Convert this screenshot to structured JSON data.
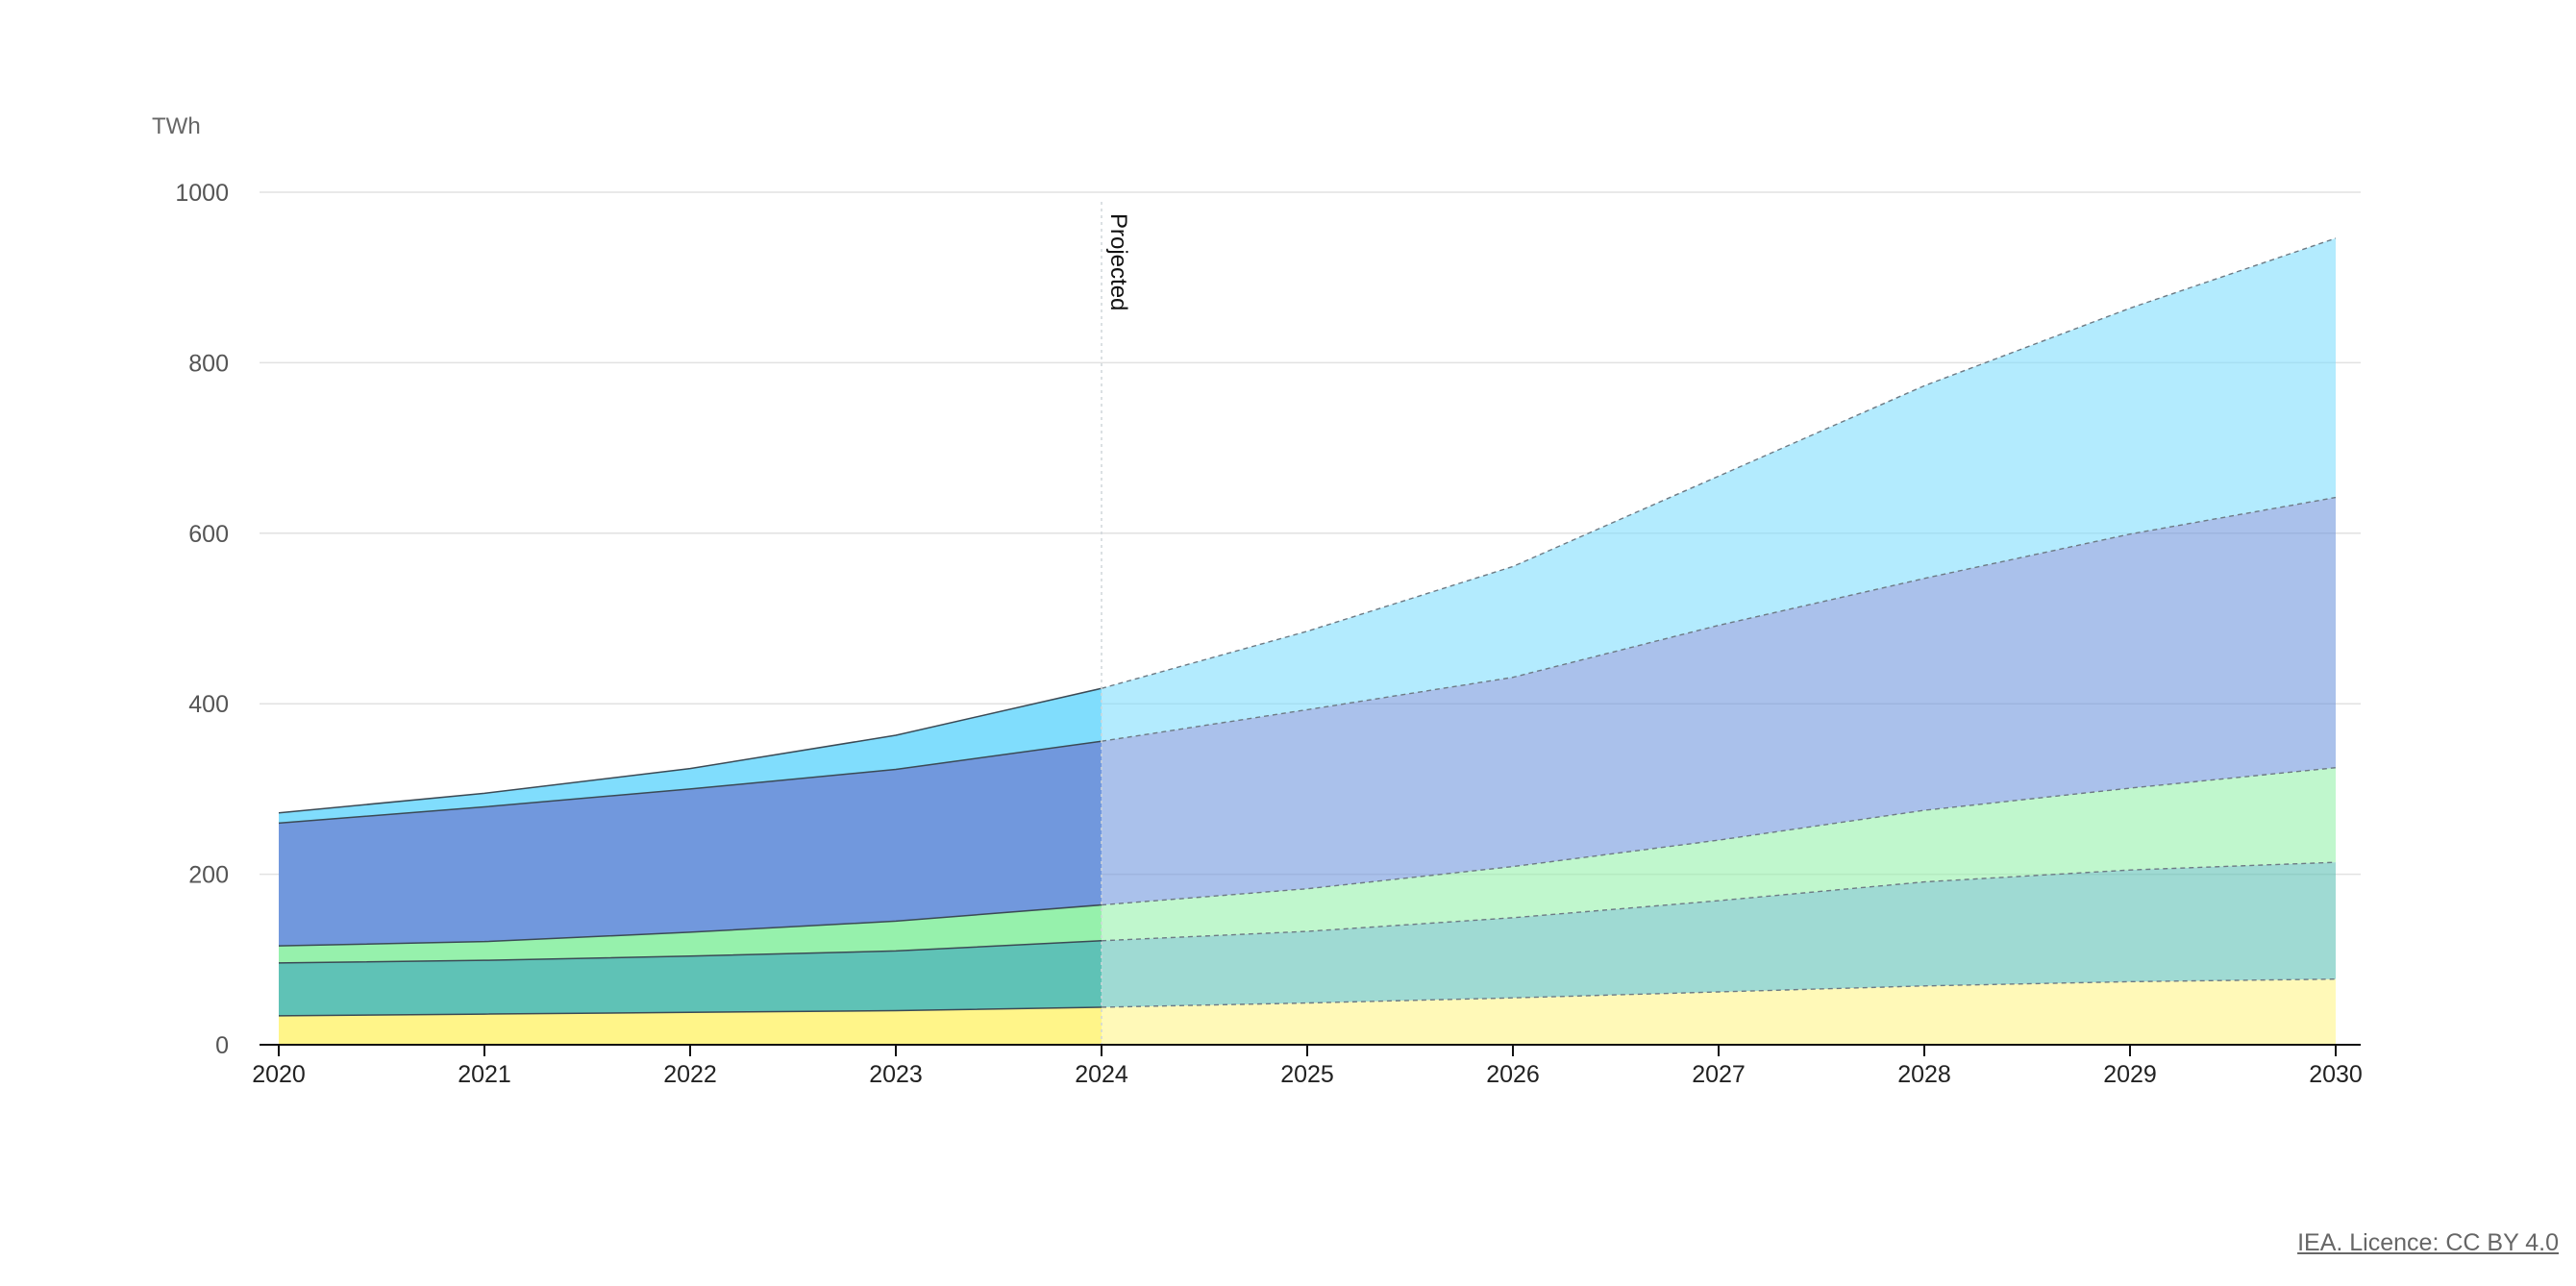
{
  "chart_data": {
    "type": "area",
    "stacked": true,
    "ylabel": "TWh",
    "ylim": [
      0,
      1000
    ],
    "yticks": [
      0,
      200,
      400,
      600,
      800,
      1000
    ],
    "x": [
      2020,
      2021,
      2022,
      2023,
      2024,
      2025,
      2026,
      2027,
      2028,
      2029,
      2030
    ],
    "projection_start": 2024,
    "projection_label": "Projected",
    "grid": true,
    "series": [
      {
        "color": "#fff589",
        "values": [
          34,
          36,
          38,
          40,
          44,
          49,
          55,
          62,
          69,
          74,
          77
        ]
      },
      {
        "color": "#5fc2b6",
        "values": [
          62,
          63,
          66,
          70,
          78,
          84,
          94,
          107,
          122,
          131,
          137
        ]
      },
      {
        "color": "#96f1ac",
        "values": [
          20,
          22,
          28,
          35,
          42,
          50,
          60,
          71,
          84,
          96,
          111
        ]
      },
      {
        "color": "#7198dd",
        "values": [
          144,
          158,
          168,
          178,
          192,
          210,
          222,
          252,
          272,
          298,
          317
        ]
      },
      {
        "color": "#80ddfd",
        "values": [
          12,
          16,
          24,
          40,
          62,
          92,
          130,
          175,
          226,
          265,
          304
        ]
      }
    ]
  },
  "source": {
    "licence_text": "IEA. Licence: CC BY 4.0"
  }
}
